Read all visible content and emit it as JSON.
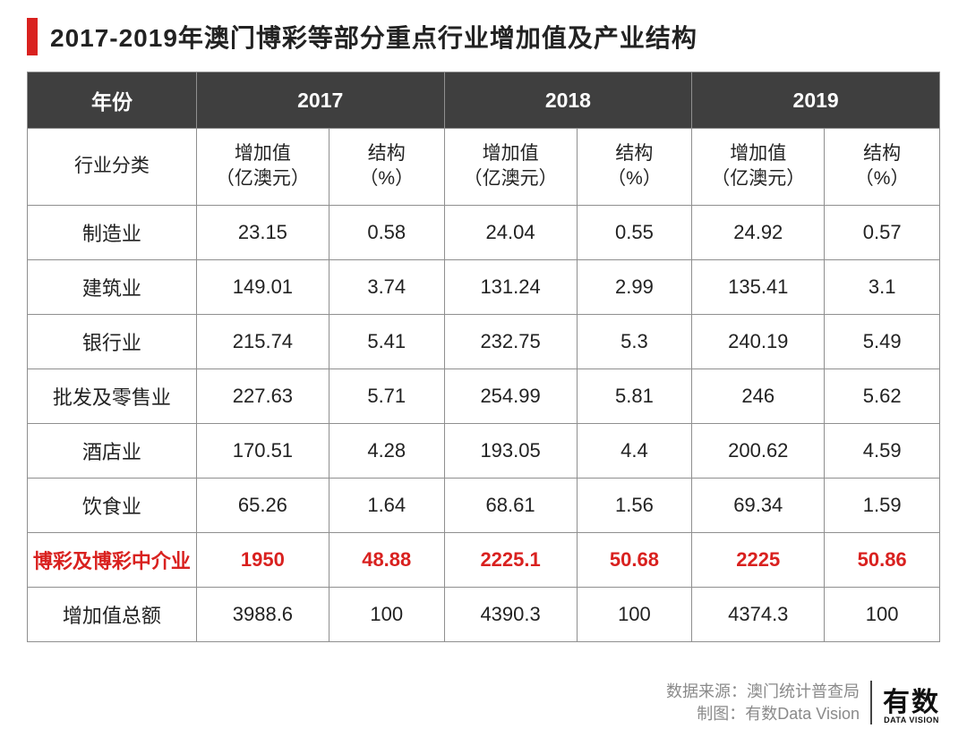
{
  "title": "2017-2019年澳门博彩等部分重点行业增加值及产业结构",
  "accent_color": "#d9211f",
  "header_bg": "#3f3f3f",
  "header_text_color": "#ffffff",
  "border_color": "#8f8f8f",
  "years": [
    "2017",
    "2018",
    "2019"
  ],
  "col_labels": {
    "year_col": "年份",
    "industry_col": "行业分类",
    "added_value": "增加值\n（亿澳元）",
    "structure": "结构\n（%）"
  },
  "rows": [
    {
      "name": "制造业",
      "v17": "23.15",
      "s17": "0.58",
      "v18": "24.04",
      "s18": "0.55",
      "v19": "24.92",
      "s19": "0.57",
      "highlight": false
    },
    {
      "name": "建筑业",
      "v17": "149.01",
      "s17": "3.74",
      "v18": "131.24",
      "s18": "2.99",
      "v19": "135.41",
      "s19": "3.1",
      "highlight": false
    },
    {
      "name": "银行业",
      "v17": "215.74",
      "s17": "5.41",
      "v18": "232.75",
      "s18": "5.3",
      "v19": "240.19",
      "s19": "5.49",
      "highlight": false
    },
    {
      "name": "批发及零售业",
      "v17": "227.63",
      "s17": "5.71",
      "v18": "254.99",
      "s18": "5.81",
      "v19": "246",
      "s19": "5.62",
      "highlight": false
    },
    {
      "name": "酒店业",
      "v17": "170.51",
      "s17": "4.28",
      "v18": "193.05",
      "s18": "4.4",
      "v19": "200.62",
      "s19": "4.59",
      "highlight": false
    },
    {
      "name": "饮食业",
      "v17": "65.26",
      "s17": "1.64",
      "v18": "68.61",
      "s18": "1.56",
      "v19": "69.34",
      "s19": "1.59",
      "highlight": false
    },
    {
      "name": "博彩及博彩中介业",
      "v17": "1950",
      "s17": "48.88",
      "v18": "2225.1",
      "s18": "50.68",
      "v19": "2225",
      "s19": "50.86",
      "highlight": true
    },
    {
      "name": "增加值总额",
      "v17": "3988.6",
      "s17": "100",
      "v18": "4390.3",
      "s18": "100",
      "v19": "4374.3",
      "s19": "100",
      "highlight": false
    }
  ],
  "footer": {
    "source_label": "数据来源：",
    "source_value": "澳门统计普查局",
    "author_label": "制图：",
    "author_value": "有数Data Vision",
    "logo_cn": "有数",
    "logo_en": "DATA VISION"
  }
}
